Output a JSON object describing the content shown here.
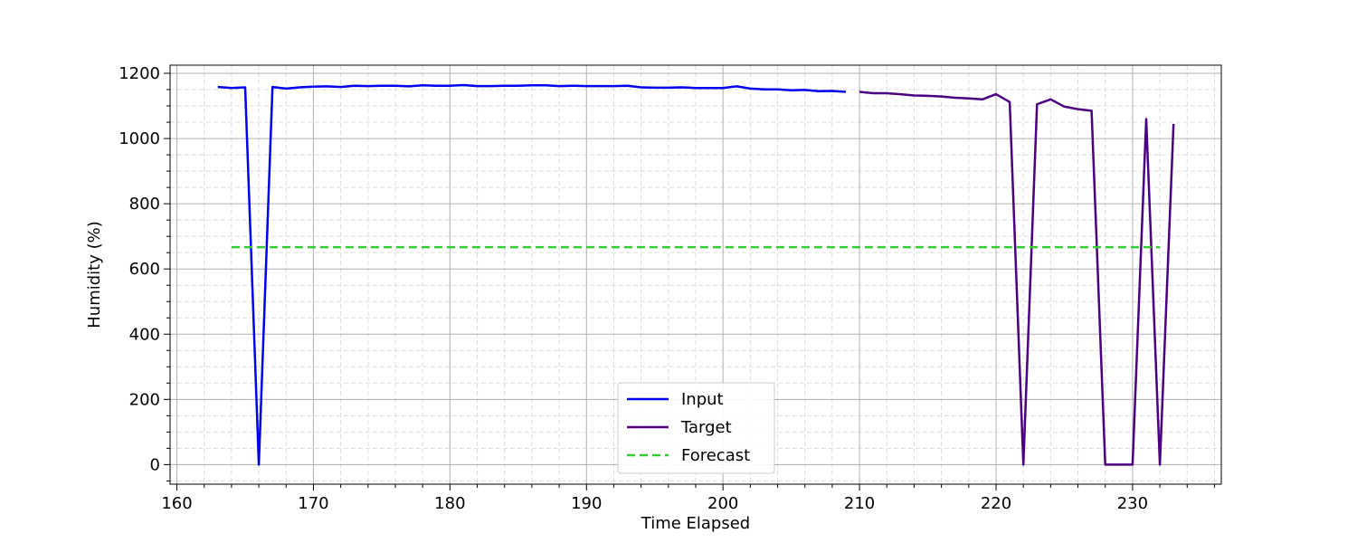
{
  "chart_data": {
    "type": "line",
    "xlabel": "Time Elapsed",
    "ylabel": "Humidity (%)",
    "xlim": [
      159.5,
      236.5
    ],
    "ylim": [
      -60,
      1225
    ],
    "xticks": [
      160,
      170,
      180,
      190,
      200,
      210,
      220,
      230
    ],
    "yticks": [
      0,
      200,
      400,
      600,
      800,
      1000,
      1200
    ],
    "x_minor_step": 2,
    "y_minor_step": 50,
    "grid": true,
    "legend_position": "lower center",
    "series": [
      {
        "name": "Input",
        "color": "#0000ee",
        "style": "solid",
        "x": [
          163,
          164,
          165,
          166,
          167,
          168,
          169,
          170,
          171,
          172,
          173,
          174,
          175,
          176,
          177,
          178,
          179,
          180,
          181,
          182,
          183,
          184,
          185,
          186,
          187,
          188,
          189,
          190,
          191,
          192,
          193,
          194,
          195,
          196,
          197,
          198,
          199,
          200,
          201,
          202,
          203,
          204,
          205,
          206,
          207,
          208,
          209
        ],
        "y": [
          1158,
          1155,
          1157,
          0,
          1158,
          1153,
          1157,
          1159,
          1160,
          1158,
          1162,
          1161,
          1162,
          1162,
          1160,
          1163,
          1162,
          1162,
          1164,
          1161,
          1161,
          1162,
          1162,
          1163,
          1163,
          1161,
          1162,
          1161,
          1161,
          1161,
          1162,
          1157,
          1156,
          1156,
          1157,
          1155,
          1155,
          1155,
          1160,
          1153,
          1151,
          1151,
          1148,
          1149,
          1145,
          1146,
          1143
        ]
      },
      {
        "name": "Target",
        "color": "#4b0082",
        "style": "solid",
        "x": [
          210,
          211,
          212,
          213,
          214,
          215,
          216,
          217,
          218,
          219,
          220,
          221,
          222,
          223,
          224,
          225,
          226,
          227,
          228,
          229,
          230,
          231,
          232,
          233
        ],
        "y": [
          1143,
          1139,
          1139,
          1136,
          1132,
          1131,
          1129,
          1125,
          1123,
          1120,
          1136,
          1112,
          0,
          1105,
          1120,
          1098,
          1090,
          1085,
          0,
          0,
          0,
          1060,
          0,
          1045
        ]
      },
      {
        "name": "Forecast",
        "color": "#33cc33",
        "style": "dashed",
        "x": [
          164,
          232
        ],
        "y": [
          667,
          667
        ]
      }
    ]
  }
}
